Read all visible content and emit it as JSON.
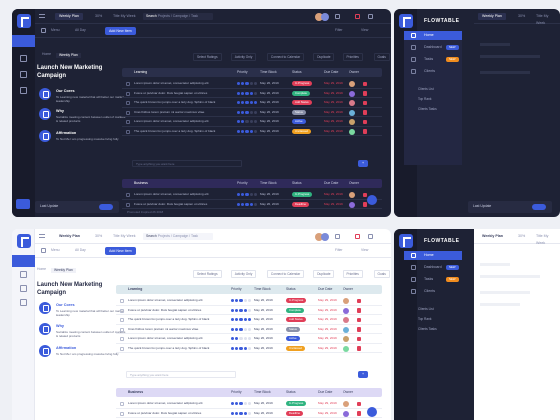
{
  "brand": {
    "name": "FLOWTABLE"
  },
  "colors": {
    "accent": "#3b5bdb",
    "dark_bg": "#1e2235",
    "light_bg": "#ffffff",
    "overdue": "#e03e58"
  },
  "topbar": {
    "tabs": [
      "Weekly Plan",
      "30%",
      "Title My Week"
    ],
    "search_label": "Search",
    "search_placeholder": "Projects / Campaign / Task"
  },
  "toolbar": {
    "menu_label": "Menu",
    "all_label": "All Day",
    "add_label": "Add New Item",
    "filter_label": "Filter",
    "view_label": "View"
  },
  "breadcrumb": [
    "Home",
    "Weekly Plan"
  ],
  "page": {
    "title_line1": "Launch New Marketing",
    "title_line2": "Campaign"
  },
  "goals": [
    {
      "title": "Our Cores",
      "desc": "To Learning new material that will better our market leadership",
      "icon": "target-icon"
    },
    {
      "title": "Why",
      "desc": "Socialize meeting content between outlet of markets & related products",
      "icon": "question-icon"
    },
    {
      "title": "Affirmation",
      "desc": "To Not Me I am progressing massive living fully",
      "icon": "heart-icon"
    }
  ],
  "last_update": "Last Update",
  "last_update_dark": "Last Update",
  "footer_note": "Promoted Inspired 26 2018",
  "filter_chips": [
    "Select Ratings",
    "Activity Only",
    "Connect to Calendar",
    "Duplicate",
    "Priorities",
    "Goals"
  ],
  "table": {
    "group1": "Learning",
    "group2": "Business",
    "add_placeholder": "Type anything you want here",
    "columns": [
      "Learning",
      "Priority",
      "Time Block",
      "Status",
      "Due Date",
      "Owner"
    ],
    "rows": [
      {
        "task": "Lorem ipsum dolor sit amet, consectetur adipiscing elit",
        "priority": 3,
        "time": "May 26, 2019",
        "status": "In Progress",
        "status_color": "#e03e58",
        "due": "May 29, 2019"
      },
      {
        "task": "Fusce ut pulvinar dolor. Duis feugiat sapien ut ultrices",
        "priority": 4,
        "time": "May 26, 2019",
        "status": "Complete",
        "status_color": "#2fb380",
        "due": "May 29, 2019"
      },
      {
        "task": "The quick brown fox jumps over a lazy dog. Sphinx of black",
        "priority": 5,
        "time": "May 26, 2019",
        "status": "Add Status",
        "status_color": "#e03e58",
        "due": "May 29, 2019"
      },
      {
        "task": "Cras finibus lorem pretium mi auctor maximus vitae",
        "priority": 3,
        "time": "May 26, 2019",
        "status": "Status",
        "status_color": "#8a90a8",
        "due": "May 29, 2019"
      },
      {
        "task": "Lorem ipsum dolor sit amet, consectetur adipiscing elit",
        "priority": 2,
        "time": "May 26, 2019",
        "status": "Active",
        "status_color": "#3b5bdb",
        "due": "May 29, 2019"
      },
      {
        "task": "The quick brown fox jumps over a lazy dog. Sphinx of black",
        "priority": 4,
        "time": "May 26, 2019",
        "status": "Unclassed",
        "status_color": "#f0a020",
        "due": "May 29, 2019"
      }
    ],
    "rows2": [
      {
        "task": "Lorem ipsum dolor sit amet, consectetur adipiscing elit",
        "priority": 3,
        "time": "May 26, 2019",
        "status": "In Progress",
        "status_color": "#2fb380",
        "due": "May 29, 2019"
      },
      {
        "task": "Fusce ut pulvinar dolor. Duis feugiat sapien ut ultrices",
        "priority": 4,
        "time": "May 26, 2019",
        "status": "Deadline",
        "status_color": "#e03e58",
        "due": "May 29, 2019"
      }
    ]
  },
  "sidebar": {
    "items": [
      {
        "label": "Home"
      },
      {
        "label": "Dashboard",
        "badge": "NEW",
        "badge_color": "#3b5bdb"
      },
      {
        "label": "Tasks",
        "badge": "NEW",
        "badge_color": "#f08c1e"
      },
      {
        "label": "Clients"
      },
      {
        "label": "Clients List"
      },
      {
        "label": "Top Rank"
      },
      {
        "label": "Clients Tasks"
      }
    ]
  }
}
